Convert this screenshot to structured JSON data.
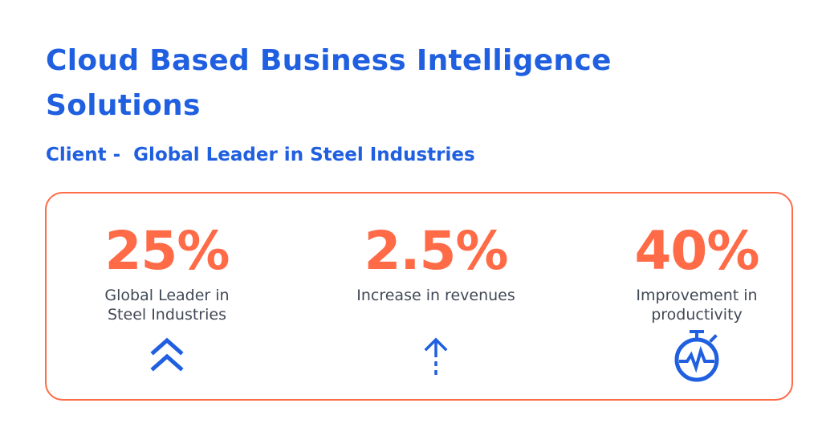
{
  "header": {
    "title": "Cloud Based Business Intelligence Solutions",
    "subtitle": "Client -  Global Leader in Steel Industries"
  },
  "stats": [
    {
      "value": "25%",
      "label_line1": "Global Leader in",
      "label_line2": "Steel Industries",
      "icon": "double-chevron-up-icon"
    },
    {
      "value": "2.5%",
      "label_line1": "Increase in revenues",
      "label_line2": "",
      "icon": "arrow-up-icon"
    },
    {
      "value": "40%",
      "label_line1": "Improvement in",
      "label_line2": "productivity",
      "icon": "stopwatch-pulse-icon"
    }
  ],
  "colors": {
    "heading_blue": "#1f5fe0",
    "accent_orange": "#ff6a47",
    "label_gray": "#404956",
    "icon_blue": "#1f5fe0"
  }
}
